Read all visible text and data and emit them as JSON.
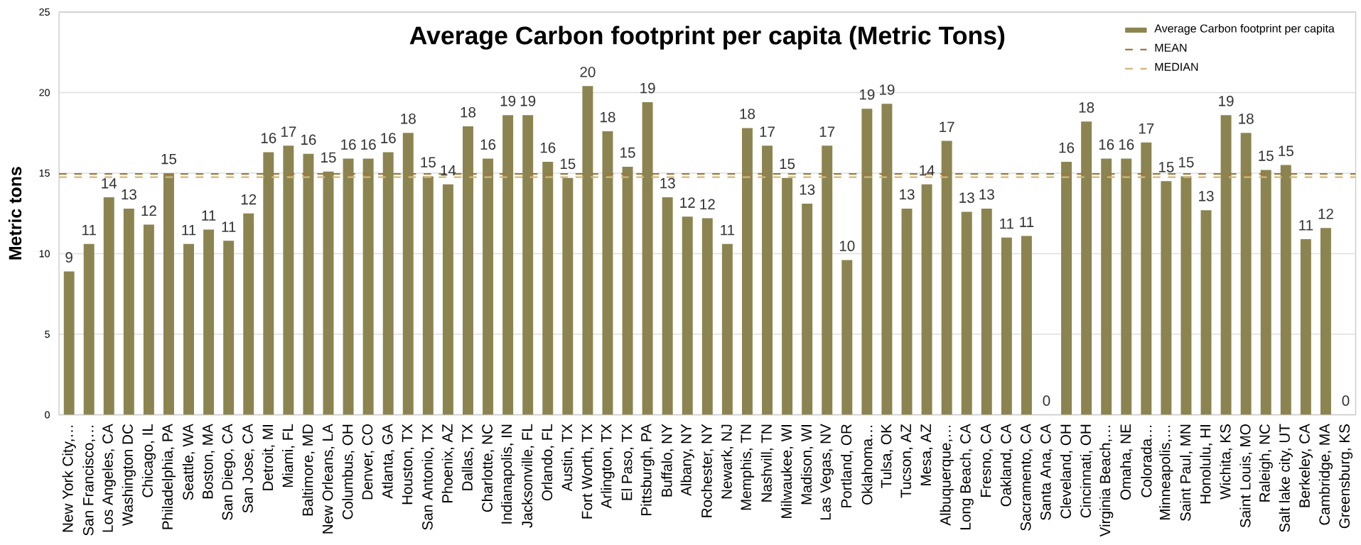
{
  "chart_data": {
    "type": "bar",
    "title": "Average Carbon footprint per capita (Metric Tons)",
    "ylabel": "Metric tons",
    "categories": [
      "New York City,…",
      "San Francisco,…",
      "Los Angeles, CA",
      "Washington DC",
      "Chicago, IL",
      "Philadelphia, PA",
      "Seattle, WA",
      "Boston, MA",
      "San Diego, CA",
      "San Jose, CA",
      "Detroit, MI",
      "Miami, FL",
      "Baltimore, MD",
      "New Orleans, LA",
      "Columbus, OH",
      "Denver, CO",
      "Atlanta, GA",
      "Houston, TX",
      "San Antonio, TX",
      "Phoenix, AZ",
      "Dallas, TX",
      "Charlotte, NC",
      "Indianapolis, IN",
      "Jacksonville, FL",
      "Orlando, FL",
      "Austin, TX",
      "Fort Worth, TX",
      "Arlington, TX",
      "El Paso, TX",
      "Pittsburgh, PA",
      "Buffalo, NY",
      "Albany, NY",
      "Rochester, NY",
      "Newark, NJ",
      "Memphis, TN",
      "Nashvill, TN",
      "Milwaukee, WI",
      "Madison, WI",
      "Las Vegas, NV",
      "Portland, OR",
      "Oklahoma…",
      "Tulsa, OK",
      "Tucson, AZ",
      "Mesa, AZ",
      "Albuquerque,…",
      "Long Beach, CA",
      "Fresno, CA",
      "Oakland, CA",
      "Sacramento, CA",
      "Santa Ana, CA",
      "Cleveland, OH",
      "Cincinnati, OH",
      "Virginia Beach,…",
      "Omaha, NE",
      "Colorada…",
      "Minneapolis,…",
      "Saint Paul, MN",
      "Honolulu, HI",
      "Wichita, KS",
      "Saint Louis, MO",
      "Raleigh, NC",
      "Salt lake city, UT",
      "Berkeley, CA",
      "Cambridge, MA",
      "Greensburg, KS"
    ],
    "series": [
      {
        "name": "Average Carbon footprint per capita",
        "color": "#8c8450",
        "values": [
          8.9,
          10.6,
          13.5,
          12.8,
          11.8,
          15.0,
          10.6,
          11.5,
          10.8,
          12.5,
          16.3,
          16.7,
          16.2,
          15.1,
          15.9,
          15.9,
          16.3,
          17.5,
          14.8,
          14.3,
          17.9,
          15.9,
          18.6,
          18.6,
          15.7,
          14.7,
          20.4,
          17.6,
          15.4,
          19.4,
          13.5,
          12.3,
          12.2,
          10.6,
          17.8,
          16.7,
          14.7,
          13.1,
          16.7,
          9.6,
          19.0,
          19.3,
          12.8,
          14.3,
          17.0,
          12.6,
          12.8,
          11.0,
          11.1,
          0,
          15.7,
          18.2,
          15.9,
          15.9,
          16.9,
          14.5,
          14.8,
          12.7,
          18.6,
          17.5,
          15.2,
          15.5,
          10.9,
          11.6,
          0
        ],
        "value_labels": [
          "9",
          "11",
          "14",
          "13",
          "12",
          "15",
          "11",
          "11",
          "11",
          "12",
          "16",
          "17",
          "16",
          "15",
          "16",
          "16",
          "16",
          "18",
          "15",
          "14",
          "18",
          "16",
          "19",
          "19",
          "16",
          "15",
          "20",
          "18",
          "15",
          "19",
          "13",
          "12",
          "12",
          "11",
          "18",
          "17",
          "15",
          "13",
          "17",
          "10",
          "19",
          "19",
          "13",
          "14",
          "17",
          "13",
          "13",
          "11",
          "11",
          "0",
          "16",
          "18",
          "16",
          "16",
          "17",
          "15",
          "15",
          "13",
          "19",
          "18",
          "15",
          "15",
          "11",
          "12",
          "0"
        ]
      }
    ],
    "ylim": [
      0,
      25
    ],
    "yticks": [
      0,
      5,
      10,
      15,
      20,
      25
    ],
    "grid": "y",
    "legend": "top right",
    "ref_lines": [
      {
        "axis": "y",
        "value": 14.95,
        "label": "MEAN",
        "color": "#a0783c",
        "line_style": "dashed"
      },
      {
        "axis": "y",
        "value": 14.75,
        "label": "MEDIAN",
        "color": "#d0b878",
        "line_style": "dashed"
      }
    ]
  }
}
